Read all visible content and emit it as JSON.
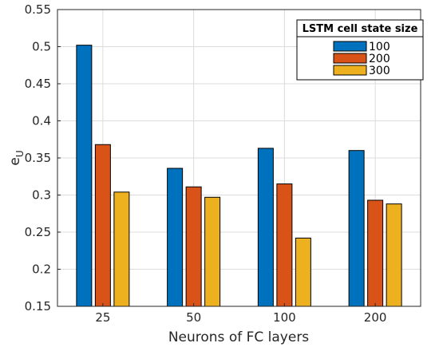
{
  "chart_data": {
    "type": "bar",
    "xlabel": "Neurons of FC layers",
    "ylabel_main": "e",
    "ylabel_sub": "U",
    "categories": [
      "25",
      "50",
      "100",
      "200"
    ],
    "ylim": [
      0.15,
      0.55
    ],
    "yticks": [
      0.15,
      0.2,
      0.25,
      0.3,
      0.35,
      0.4,
      0.45,
      0.5,
      0.55
    ],
    "ytick_labels": [
      "0.15",
      "0.2",
      "0.25",
      "0.3",
      "0.35",
      "0.4",
      "0.45",
      "0.5",
      "0.55"
    ],
    "grid": true,
    "legend": {
      "title": "LSTM cell state size",
      "position": "top-right"
    },
    "series": [
      {
        "name": "100",
        "color": "#0072BD",
        "values": [
          0.502,
          0.336,
          0.363,
          0.36
        ]
      },
      {
        "name": "200",
        "color": "#D95319",
        "values": [
          0.368,
          0.311,
          0.315,
          0.293
        ]
      },
      {
        "name": "300",
        "color": "#EDB120",
        "values": [
          0.304,
          0.297,
          0.242,
          0.288
        ]
      }
    ]
  }
}
